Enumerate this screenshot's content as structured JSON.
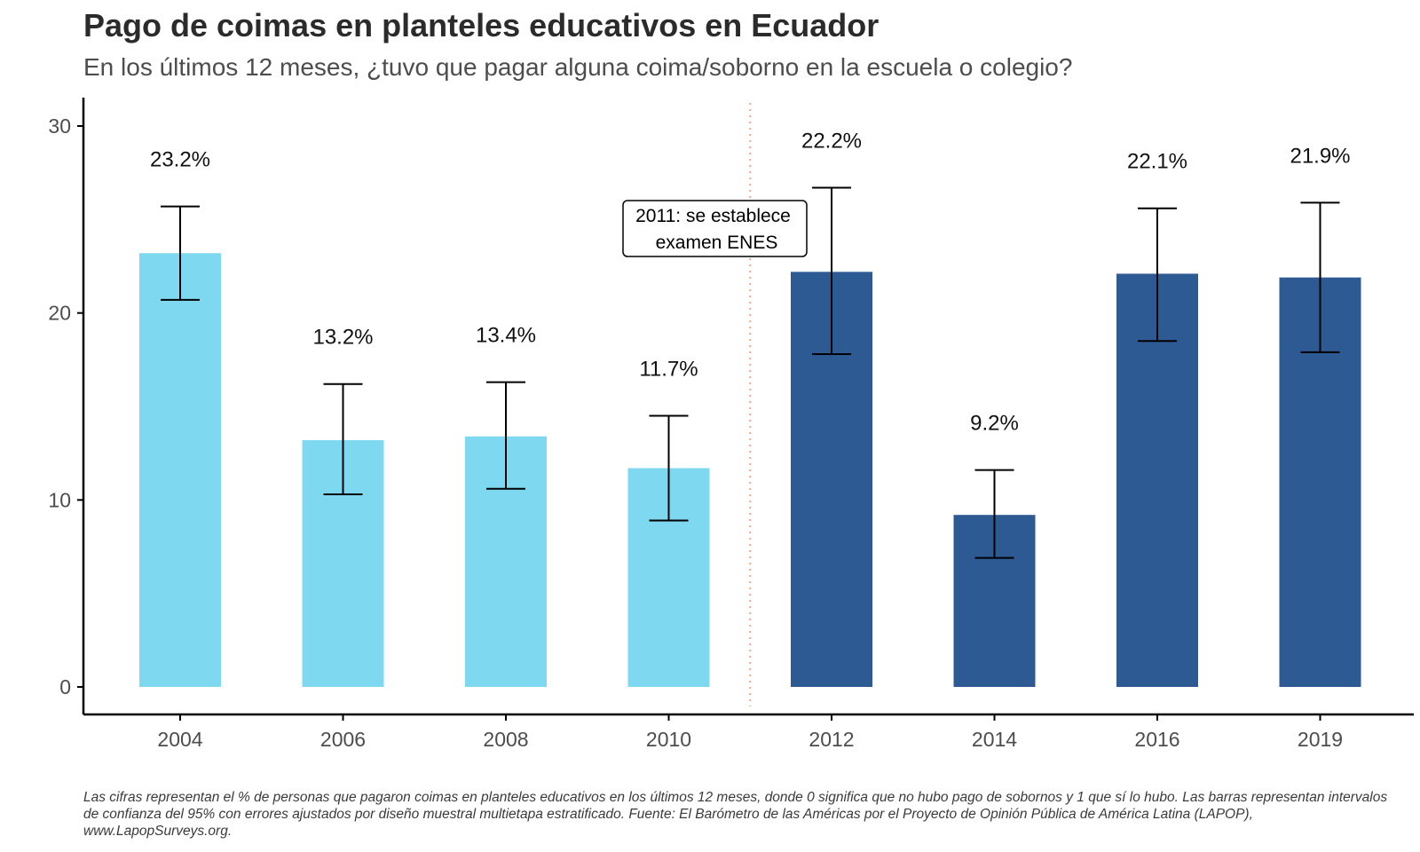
{
  "title": "Pago de coimas en planteles educativos en Ecuador",
  "subtitle": "En los últimos 12 meses, ¿tuvo que pagar alguna coima/soborno en la escuela o colegio?",
  "caption": "Las cifras representan el % de personas que pagaron coimas en planteles educativos en los últimos 12 meses, donde 0 significa que no hubo pago de sobornos y 1 que sí lo hubo. Las barras representan intervalos de confianza del 95% con errores ajustados por diseño muestral multietapa estratificado. Fuente: El Barómetro de las Américas por el Proyecto de Opinión Pública de América Latina (LAPOP), www.LapopSurveys.org.",
  "colors": {
    "before": "#7ed9f0",
    "after": "#2e5a94",
    "reference_line": "#f4a582",
    "axis": "#000000"
  },
  "chart_data": {
    "type": "bar",
    "title": "Pago de coimas en planteles educativos en Ecuador",
    "subtitle": "En los últimos 12 meses, ¿tuvo que pagar alguna coima/soborno en la escuela o colegio?",
    "xlabel": "",
    "ylabel": "",
    "ylim": [
      0,
      30
    ],
    "yticks": [
      0,
      10,
      20,
      30
    ],
    "grid": false,
    "categories": [
      "2004",
      "2006",
      "2008",
      "2010",
      "2012",
      "2014",
      "2016",
      "2019"
    ],
    "values": [
      23.2,
      13.2,
      13.4,
      11.7,
      22.2,
      9.2,
      22.1,
      21.9
    ],
    "value_labels": [
      "23.2%",
      "13.2%",
      "13.4%",
      "11.7%",
      "22.2%",
      "9.2%",
      "22.1%",
      "21.9%"
    ],
    "ci_low": [
      20.7,
      10.3,
      10.6,
      8.9,
      17.8,
      6.9,
      18.5,
      17.9
    ],
    "ci_high": [
      25.7,
      16.2,
      16.3,
      14.5,
      26.7,
      11.6,
      25.6,
      25.9
    ],
    "group": [
      "before",
      "before",
      "before",
      "before",
      "after",
      "after",
      "after",
      "after"
    ],
    "reference_line": {
      "x": 2011,
      "style": "dotted",
      "annotation_lines": [
        "2011: se establece",
        "examen ENES"
      ]
    }
  }
}
